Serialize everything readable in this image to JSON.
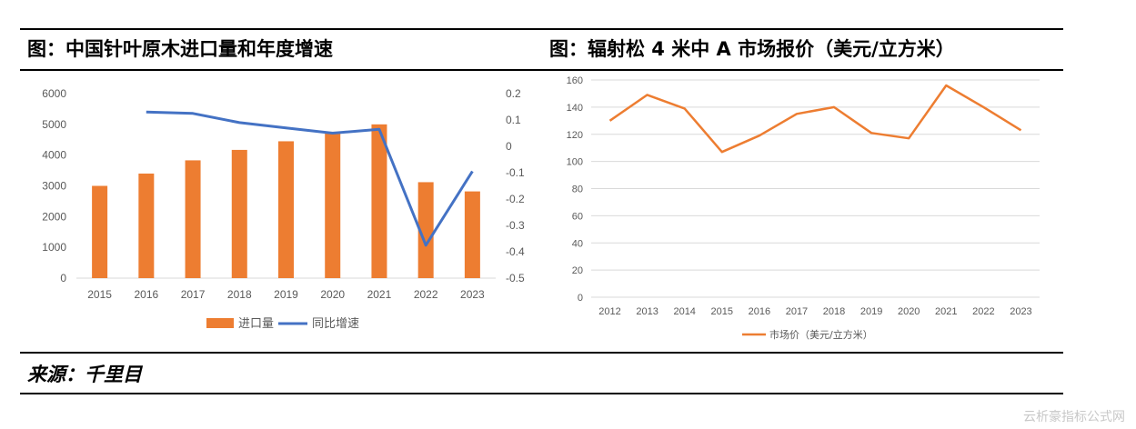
{
  "header": {
    "left_title": "图：中国针叶原木进口量和年度增速",
    "right_title": "图：辐射松 4 米中 A 市场报价（美元/立方米）"
  },
  "footer": {
    "source": "来源：千里目",
    "watermark": "云析豪指标公式网"
  },
  "colors": {
    "bar": "#ED7D31",
    "line_blue": "#4472C4",
    "line_orange": "#ED7D31",
    "grid": "#D9D9D9",
    "tick": "#595959"
  },
  "chart_data": [
    {
      "type": "bar+line",
      "categories": [
        "2015",
        "2016",
        "2017",
        "2018",
        "2019",
        "2020",
        "2021",
        "2022",
        "2023"
      ],
      "series": [
        {
          "name": "进口量",
          "type": "bar",
          "axis": "left",
          "values": [
            3000,
            3400,
            3830,
            4170,
            4450,
            4760,
            5000,
            3120,
            2820
          ]
        },
        {
          "name": "同比增速",
          "type": "line",
          "axis": "right",
          "values": [
            null,
            0.13,
            0.125,
            0.09,
            0.07,
            0.05,
            0.065,
            -0.375,
            -0.095
          ]
        }
      ],
      "y_left": {
        "min": 0,
        "max": 6000,
        "ticks": [
          "0",
          "1000",
          "2000",
          "3000",
          "4000",
          "5000",
          "6000"
        ]
      },
      "y_right": {
        "min": -0.5,
        "max": 0.2,
        "ticks": [
          "-0.5",
          "-0.4",
          "-0.3",
          "-0.2",
          "-0.1",
          "0",
          "0.1",
          "0.2"
        ]
      },
      "grid": false,
      "legend_position": "bottom"
    },
    {
      "type": "line",
      "categories": [
        "2012",
        "2013",
        "2014",
        "2015",
        "2016",
        "2017",
        "2018",
        "2019",
        "2020",
        "2021",
        "2022",
        "2023"
      ],
      "series": [
        {
          "name": "市场价（美元/立方米）",
          "values": [
            130,
            149,
            139,
            107,
            119,
            135,
            140,
            121,
            117,
            156,
            140,
            123
          ]
        }
      ],
      "y": {
        "min": 0,
        "max": 160,
        "ticks": [
          "0",
          "20",
          "40",
          "60",
          "80",
          "100",
          "120",
          "140",
          "160"
        ]
      },
      "grid": true,
      "legend_position": "bottom"
    }
  ]
}
